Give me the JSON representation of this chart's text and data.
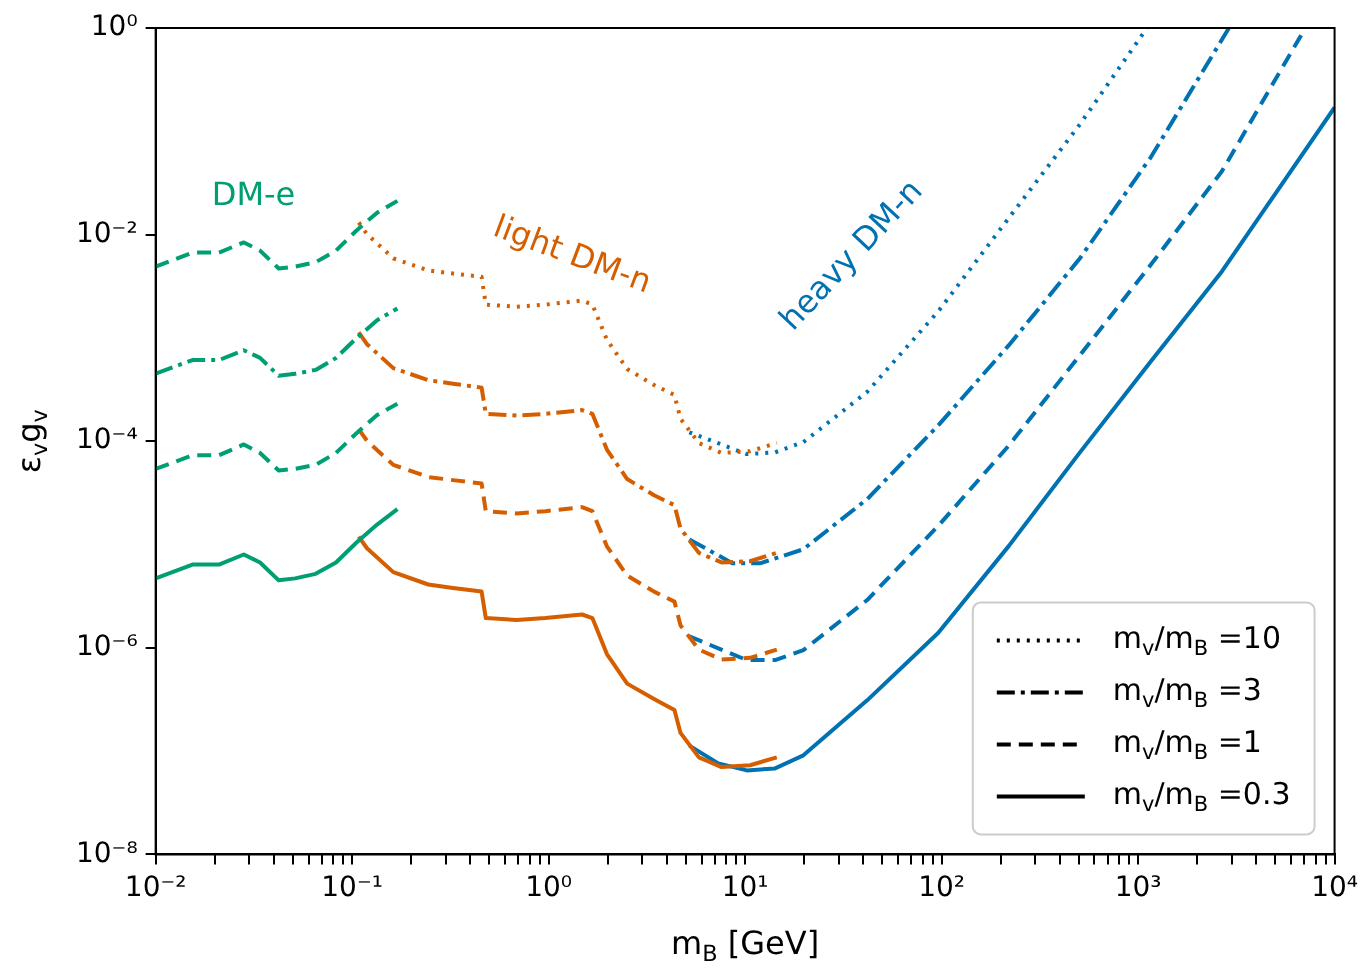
{
  "chart_data": {
    "type": "line",
    "xlabel": "m$_{B}$ [GeV]",
    "ylabel": "ε$_{v}$g$_{v}$",
    "log": "xy",
    "grid": false,
    "legend": "bottom right",
    "xlim": [
      0.01,
      10000
    ],
    "ylim": [
      1e-08,
      1
    ],
    "xticks": [
      {
        "value": 0.01,
        "label": "10⁻²"
      },
      {
        "value": 0.02,
        "label": null
      },
      {
        "value": 0.03,
        "label": null
      },
      {
        "value": 0.04,
        "label": null
      },
      {
        "value": 0.05,
        "label": null
      },
      {
        "value": 0.06,
        "label": null
      },
      {
        "value": 0.07,
        "label": null
      },
      {
        "value": 0.08,
        "label": null
      },
      {
        "value": 0.09,
        "label": null
      },
      {
        "value": 0.1,
        "label": "10⁻¹"
      },
      {
        "value": 0.2,
        "label": null
      },
      {
        "value": 0.3,
        "label": null
      },
      {
        "value": 0.4,
        "label": null
      },
      {
        "value": 0.5,
        "label": null
      },
      {
        "value": 0.6,
        "label": null
      },
      {
        "value": 0.7,
        "label": null
      },
      {
        "value": 0.8,
        "label": null
      },
      {
        "value": 0.9,
        "label": null
      },
      {
        "value": 1,
        "label": "10⁰"
      },
      {
        "value": 2,
        "label": null
      },
      {
        "value": 3,
        "label": null
      },
      {
        "value": 4,
        "label": null
      },
      {
        "value": 5,
        "label": null
      },
      {
        "value": 6,
        "label": null
      },
      {
        "value": 7,
        "label": null
      },
      {
        "value": 8,
        "label": null
      },
      {
        "value": 9,
        "label": null
      },
      {
        "value": 10,
        "label": "10¹"
      },
      {
        "value": 20,
        "label": null
      },
      {
        "value": 30,
        "label": null
      },
      {
        "value": 40,
        "label": null
      },
      {
        "value": 50,
        "label": null
      },
      {
        "value": 60,
        "label": null
      },
      {
        "value": 70,
        "label": null
      },
      {
        "value": 80,
        "label": null
      },
      {
        "value": 90,
        "label": null
      },
      {
        "value": 100,
        "label": "10²"
      },
      {
        "value": 200,
        "label": null
      },
      {
        "value": 300,
        "label": null
      },
      {
        "value": 400,
        "label": null
      },
      {
        "value": 500,
        "label": null
      },
      {
        "value": 600,
        "label": null
      },
      {
        "value": 700,
        "label": null
      },
      {
        "value": 800,
        "label": null
      },
      {
        "value": 900,
        "label": null
      },
      {
        "value": 1000,
        "label": "10³"
      },
      {
        "value": 2000,
        "label": null
      },
      {
        "value": 3000,
        "label": null
      },
      {
        "value": 4000,
        "label": null
      },
      {
        "value": 5000,
        "label": null
      },
      {
        "value": 6000,
        "label": null
      },
      {
        "value": 7000,
        "label": null
      },
      {
        "value": 8000,
        "label": null
      },
      {
        "value": 9000,
        "label": null
      },
      {
        "value": 10000,
        "label": "10⁴"
      }
    ],
    "yticks": [
      {
        "value": 1e-08,
        "label": "10⁻⁸"
      },
      {
        "value": 1e-06,
        "label": "10⁻⁶"
      },
      {
        "value": 0.0001,
        "label": "10⁻⁴"
      },
      {
        "value": 0.01,
        "label": "10⁻²"
      },
      {
        "value": 1,
        "label": "10⁰"
      }
    ],
    "annotations": [
      "DM-e",
      "light DM-n",
      "heavy DM-n"
    ],
    "series": [
      {
        "color": "#009e73",
        "line_style": "dashed",
        "x": [
          0.01,
          0.0154,
          0.021,
          0.0281,
          0.034,
          0.0423,
          0.0513,
          0.0652,
          0.0828,
          0.105,
          0.134,
          0.17
        ],
        "values": [
          0.0049,
          0.0067,
          0.0067,
          0.0084,
          0.007,
          0.0047,
          0.0049,
          0.0054,
          0.007,
          0.0109,
          0.0163,
          0.0212
        ]
      },
      {
        "color": "#009e73",
        "line_style": "dashdot",
        "x": [
          0.01,
          0.0154,
          0.021,
          0.0281,
          0.034,
          0.0423,
          0.0513,
          0.0652,
          0.0828,
          0.105,
          0.134,
          0.17
        ],
        "values": [
          0.00045,
          0.00061,
          0.00061,
          0.00076,
          0.00064,
          0.00043,
          0.00045,
          0.00049,
          0.00064,
          0.00099,
          0.00148,
          0.00193
        ]
      },
      {
        "color": "#009e73",
        "line_style": "dashed",
        "x": [
          0.01,
          0.0154,
          0.021,
          0.0281,
          0.034,
          0.0423,
          0.0513,
          0.0652,
          0.0828,
          0.105,
          0.134,
          0.17
        ],
        "values": [
          5.4e-05,
          7.3e-05,
          7.3e-05,
          9.3e-05,
          7.7e-05,
          5.2e-05,
          5.4e-05,
          5.9e-05,
          7.7e-05,
          0.000119,
          0.000179,
          0.00023
        ]
      },
      {
        "color": "#009e73",
        "line_style": "solid",
        "x": [
          0.01,
          0.0154,
          0.021,
          0.0281,
          0.034,
          0.0423,
          0.0513,
          0.0652,
          0.0828,
          0.105,
          0.134,
          0.17
        ],
        "values": [
          4.7e-06,
          6.4e-06,
          6.4e-06,
          8e-06,
          6.7e-06,
          4.5e-06,
          4.7e-06,
          5.2e-06,
          6.7e-06,
          1.04e-05,
          1.56e-05,
          2.2e-05
        ]
      },
      {
        "color": "#d55e00",
        "line_style": "dotted",
        "x": [
          0.108,
          0.119,
          0.162,
          0.244,
          0.326,
          0.456,
          0.479,
          0.687,
          0.962,
          1.48,
          1.67,
          1.98,
          2.51,
          3.44,
          4.37,
          4.69,
          5.82,
          7.59,
          10.6,
          14.5
        ],
        "values": [
          0.0131,
          0.0101,
          0.0059,
          0.0045,
          0.0042,
          0.0039,
          0.0021,
          0.002,
          0.0021,
          0.0023,
          0.0021,
          0.00096,
          0.0005,
          0.00035,
          0.00028,
          0.000165,
          9.6e-05,
          7.7e-05,
          8e-05,
          9.6e-05
        ]
      },
      {
        "color": "#d55e00",
        "line_style": "dashdot",
        "x": [
          0.108,
          0.119,
          0.162,
          0.244,
          0.326,
          0.456,
          0.479,
          0.687,
          0.962,
          1.48,
          1.67,
          1.98,
          2.51,
          3.44,
          4.37,
          4.69,
          5.82,
          7.59,
          10.6,
          14.5
        ],
        "values": [
          0.00113,
          0.00087,
          0.00051,
          0.00039,
          0.00036,
          0.00033,
          0.000184,
          0.000177,
          0.000184,
          0.0002,
          0.000184,
          8.3e-05,
          4.3e-05,
          3e-05,
          2.4e-05,
          1.43e-05,
          8.3e-06,
          6.7e-06,
          6.9e-06,
          8.3e-06
        ]
      },
      {
        "color": "#d55e00",
        "line_style": "dashed",
        "x": [
          0.108,
          0.119,
          0.162,
          0.244,
          0.326,
          0.456,
          0.479,
          0.687,
          0.962,
          1.48,
          1.67,
          1.98,
          2.51,
          3.44,
          4.37,
          4.69,
          5.82,
          7.59,
          10.6,
          14.5
        ],
        "values": [
          0.000131,
          0.000101,
          5.9e-05,
          4.5e-05,
          4.2e-05,
          3.9e-05,
          2.1e-05,
          2e-05,
          2.1e-05,
          2.3e-05,
          2.1e-05,
          9.6e-06,
          5e-06,
          3.5e-06,
          2.8e-06,
          1.65e-06,
          9.6e-07,
          7.7e-07,
          8e-07,
          9.6e-07
        ]
      },
      {
        "color": "#d55e00",
        "line_style": "solid",
        "x": [
          0.108,
          0.119,
          0.162,
          0.244,
          0.326,
          0.456,
          0.479,
          0.687,
          0.962,
          1.48,
          1.67,
          1.98,
          2.51,
          3.44,
          4.37,
          4.69,
          5.82,
          7.59,
          10.6,
          14.5
        ],
        "values": [
          1.19e-05,
          9.2e-06,
          5.4e-06,
          4.1e-06,
          3.8e-06,
          3.5e-06,
          1.94e-06,
          1.86e-06,
          1.94e-06,
          2.1e-06,
          1.94e-06,
          8.7e-07,
          4.5e-07,
          3.2e-07,
          2.5e-07,
          1.5e-07,
          8.7e-08,
          7e-08,
          7.3e-08,
          8.7e-08
        ]
      },
      {
        "color": "#0072b2",
        "line_style": "dotted",
        "x": [
          5.2,
          10.2,
          14.2,
          19.8,
          41.8,
          96,
          220,
          506,
          1110
        ],
        "values": [
          0.000122,
          7.5e-05,
          7.8e-05,
          9.8e-05,
          0.0003,
          0.0018,
          0.0145,
          0.117,
          1
        ]
      },
      {
        "color": "#0072b2",
        "line_style": "dashdot",
        "x": [
          5.2,
          8.6,
          12,
          19.8,
          41.8,
          96,
          220,
          506,
          1160,
          2900
        ],
        "values": [
          1.12e-05,
          6.6e-06,
          6.6e-06,
          9e-06,
          2.75e-05,
          0.000142,
          0.00085,
          0.0059,
          0.056,
          1
        ]
      },
      {
        "color": "#0072b2",
        "line_style": "dashed",
        "x": [
          5.2,
          10.2,
          14.2,
          19.8,
          41.8,
          96,
          220,
          506,
          1160,
          2670,
          7100
        ],
        "values": [
          1.29e-06,
          7.6e-07,
          7.6e-07,
          9.5e-07,
          2.9e-06,
          1.51e-05,
          9.1e-05,
          0.00068,
          0.0051,
          0.041,
          1
        ]
      },
      {
        "color": "#0072b2",
        "line_style": "solid",
        "x": [
          5.2,
          7.3,
          10.2,
          14.2,
          19.8,
          41.8,
          96,
          220,
          506,
          1160,
          2670,
          10000
        ],
        "values": [
          1.13e-07,
          7.6e-08,
          6.5e-08,
          6.8e-08,
          9.1e-08,
          3.1e-07,
          1.39e-06,
          9.7e-06,
          7.8e-05,
          0.00059,
          0.0044,
          0.17
        ]
      },
      {
        "name": "m$_{v}$/m$_{B}$ =10",
        "color": "#000000",
        "line_style": "dotted"
      },
      {
        "name": "m$_{v}$/m$_{B}$ =3",
        "color": "#000000",
        "line_style": "dashdot"
      },
      {
        "name": "m$_{v}$/m$_{B}$ =1",
        "color": "#000000",
        "line_style": "dashed"
      },
      {
        "name": "m$_{v}$/m$_{B}$ =0.3",
        "color": "#000000",
        "line_style": "solid"
      }
    ]
  }
}
